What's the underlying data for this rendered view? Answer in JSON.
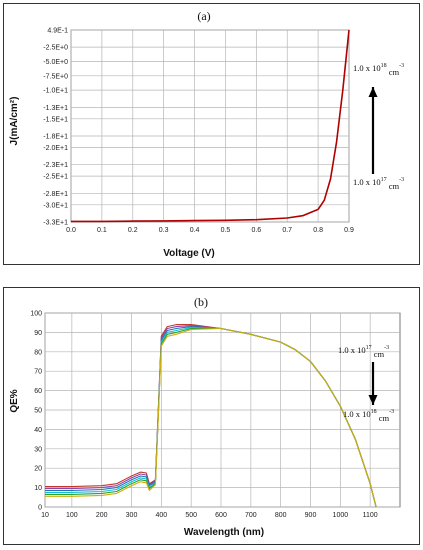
{
  "chart_data": [
    {
      "type": "line",
      "panel_label": "(a)",
      "xlabel": "Voltage (V)",
      "ylabel": "J(mA/cm²)",
      "xlim": [
        0.0,
        0.9
      ],
      "ylim": [
        -33,
        0.49
      ],
      "grid": true,
      "x_ticks": [
        "0.0",
        "0.1",
        "0.2",
        "0.3",
        "0.4",
        "0.5",
        "0.6",
        "0.7",
        "0.8",
        "0.9"
      ],
      "y_ticks": [
        "4.9E-1",
        "-2.5E+0",
        "-5.0E+0",
        "-7.5E+0",
        "-1.0E+1",
        "-1.3E+1",
        "-1.5E+1",
        "-1.8E+1",
        "-2.0E+1",
        "-2.3E+1",
        "-2.5E+1",
        "-2.8E+1",
        "-3.0E+1",
        "-3.3E+1"
      ],
      "annotations": [
        {
          "base": "1.0 x 10",
          "exp": "18",
          "unit": " cm",
          "unit_exp": "-3"
        },
        {
          "base": "1.0 x 10",
          "exp": "17",
          "unit": " cm",
          "unit_exp": "-3"
        }
      ],
      "arrow_direction": "up",
      "x": [
        0.0,
        0.1,
        0.2,
        0.3,
        0.4,
        0.5,
        0.6,
        0.7,
        0.75,
        0.8,
        0.82,
        0.84,
        0.86,
        0.88,
        0.9
      ],
      "series": [
        {
          "values": [
            -32.9,
            -32.9,
            -32.85,
            -32.8,
            -32.75,
            -32.7,
            -32.6,
            -32.3,
            -31.9,
            -30.8,
            -29.2,
            -25.5,
            -19.0,
            -10.0,
            0.49
          ]
        }
      ],
      "colors": [
        "#b00000",
        "#00a651",
        "#2e8b57",
        "#1f77b4"
      ]
    },
    {
      "type": "line",
      "panel_label": "(b)",
      "xlabel": "Wavelength (nm)",
      "ylabel": "QE%",
      "xlim": [
        10,
        1200
      ],
      "ylim": [
        0,
        100
      ],
      "grid": true,
      "x_ticks": [
        "10",
        "100",
        "200",
        "300",
        "400",
        "500",
        "600",
        "700",
        "800",
        "900",
        "1000",
        "1100"
      ],
      "y_ticks": [
        "0",
        "10",
        "20",
        "30",
        "40",
        "50",
        "60",
        "70",
        "80",
        "90",
        "100"
      ],
      "annotations": [
        {
          "base": "1.0 x 10",
          "exp": "17",
          "unit": " cm",
          "unit_exp": "-3"
        },
        {
          "base": "1.0 x 10",
          "exp": "18",
          "unit": " cm",
          "unit_exp": "-3"
        }
      ],
      "arrow_direction": "down",
      "x": [
        10,
        100,
        200,
        250,
        300,
        330,
        350,
        360,
        380,
        400,
        420,
        450,
        500,
        600,
        700,
        800,
        850,
        900,
        950,
        1000,
        1050,
        1100,
        1120
      ],
      "series": [
        {
          "values": [
            10.5,
            10.5,
            11,
            12,
            16,
            18,
            17.5,
            12,
            14,
            88,
            93,
            94,
            94,
            92,
            89,
            85,
            81,
            75,
            65,
            52,
            35,
            12,
            0
          ]
        },
        {
          "values": [
            9.5,
            9.5,
            10,
            11,
            15,
            17,
            16.5,
            11.5,
            13.5,
            87,
            92,
            93,
            93.5,
            92,
            89,
            85,
            81,
            75,
            65,
            52,
            35,
            12,
            0
          ]
        },
        {
          "values": [
            8.5,
            8.5,
            9,
            10,
            14,
            16,
            15.5,
            11,
            13,
            86,
            91,
            92,
            93,
            92,
            89,
            85,
            81,
            75,
            65,
            52,
            35,
            12,
            0
          ]
        },
        {
          "values": [
            7.5,
            7.5,
            8,
            9,
            13,
            15,
            14.5,
            10,
            12.5,
            85,
            90,
            91,
            92.5,
            92,
            89,
            85,
            81,
            75,
            65,
            52,
            35,
            12,
            0
          ]
        },
        {
          "values": [
            6.5,
            6.5,
            7,
            8,
            12,
            14,
            13.5,
            9.5,
            12,
            84,
            89,
            90,
            92,
            92,
            89,
            85,
            81,
            75,
            65,
            52,
            35,
            12,
            0
          ]
        },
        {
          "values": [
            5.5,
            5.5,
            6,
            7,
            11,
            13,
            12.5,
            8.5,
            11.5,
            83,
            88,
            89,
            91.5,
            92,
            89,
            85,
            81,
            75,
            65,
            52,
            35,
            12,
            0
          ]
        }
      ],
      "colors": [
        "#c0392b",
        "#8e44ad",
        "#1f77b4",
        "#17becf",
        "#2ca02c",
        "#d4ac0d"
      ]
    }
  ]
}
